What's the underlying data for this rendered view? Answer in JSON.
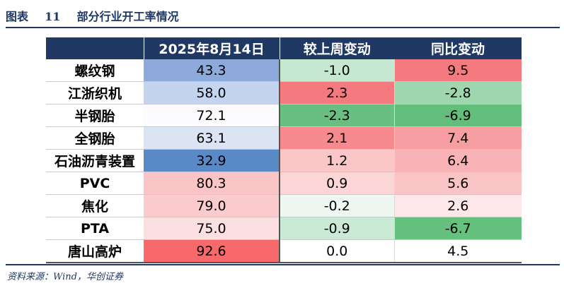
{
  "caption": {
    "label": "图表",
    "number": "11",
    "title": "部分行业开工率情况"
  },
  "table": {
    "headers": [
      "",
      "2025年8月14日",
      "较上周变动",
      "同比变动"
    ],
    "rows": [
      {
        "name": "螺纹钢",
        "value": "43.3",
        "wow": "-1.0",
        "yoy": "9.5",
        "value_color": "#8eaadb",
        "wow_color": "#c6e8d0",
        "yoy_color": "#f47a7f"
      },
      {
        "name": "江浙织机",
        "value": "58.0",
        "wow": "2.3",
        "yoy": "-2.8",
        "value_color": "#c5d4ee",
        "wow_color": "#f47a7f",
        "yoy_color": "#9ed6ae"
      },
      {
        "name": "半钢胎",
        "value": "72.1",
        "wow": "-2.3",
        "yoy": "-6.9",
        "value_color": "#fcfcfe",
        "wow_color": "#69bf82",
        "yoy_color": "#63be7b"
      },
      {
        "name": "全钢胎",
        "value": "63.1",
        "wow": "2.1",
        "yoy": "7.4",
        "value_color": "#dbe4f3",
        "wow_color": "#f68a8e",
        "yoy_color": "#f79ea2"
      },
      {
        "name": "石油沥青装置",
        "value": "32.9",
        "wow": "1.2",
        "yoy": "6.4",
        "value_color": "#5a8ac6",
        "wow_color": "#fbc6c8",
        "yoy_color": "#f9b3b6"
      },
      {
        "name": "PVC",
        "value": "80.3",
        "wow": "0.9",
        "yoy": "5.6",
        "value_color": "#fbc5c8",
        "wow_color": "#fcd5d7",
        "yoy_color": "#fac3c6"
      },
      {
        "name": "焦化",
        "value": "79.0",
        "wow": "-0.2",
        "yoy": "2.6",
        "value_color": "#fbcbce",
        "wow_color": "#eef7f1",
        "yoy_color": "#fde7e8"
      },
      {
        "name": "PTA",
        "value": "75.0",
        "wow": "-0.9",
        "yoy": "-6.7",
        "value_color": "#fce0e1",
        "wow_color": "#cbead5",
        "yoy_color": "#66c07e"
      },
      {
        "name": "唐山高炉",
        "value": "92.6",
        "wow": "0.0",
        "yoy": "4.5",
        "value_color": "#f8696b",
        "wow_color": "#ffffff",
        "yoy_color": "#ffffff"
      }
    ]
  },
  "source": "资料来源：Wind，华创证券"
}
